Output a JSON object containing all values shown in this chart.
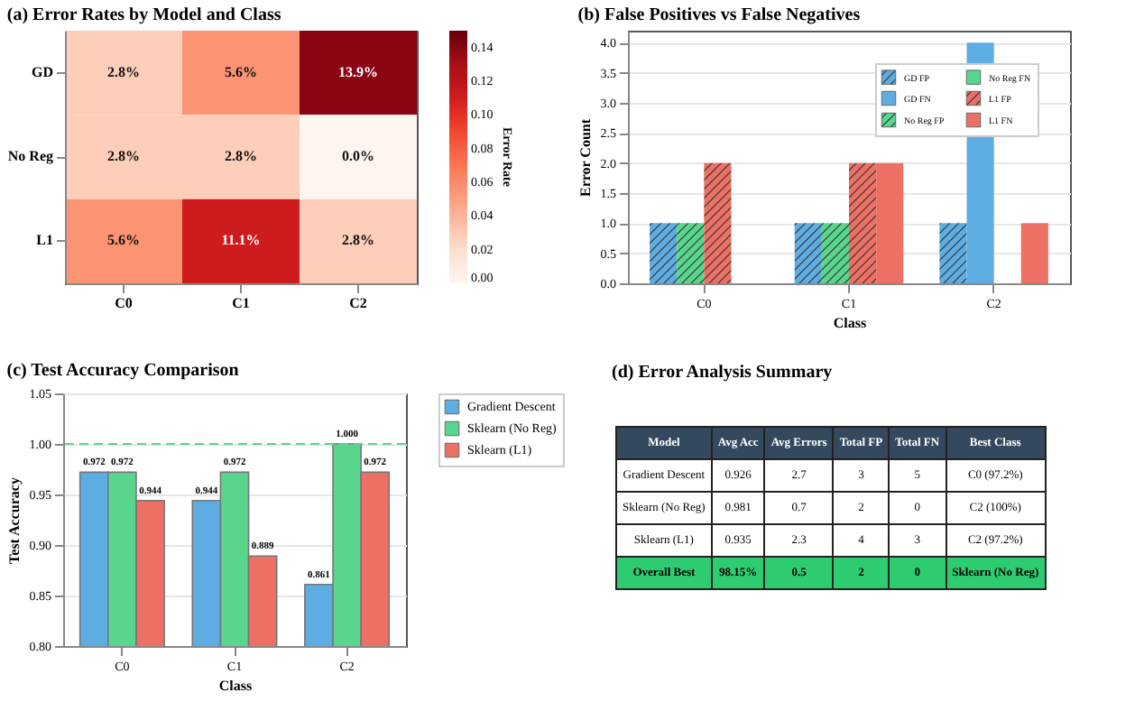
{
  "chart_data": [
    {
      "type": "heatmap",
      "title": "(a) Error Rates by Model and Class",
      "clabel": "Error Rate",
      "categories": [
        "C0",
        "C1",
        "C2"
      ],
      "y_categories": [
        "GD",
        "No Reg",
        "L1"
      ],
      "cells": [
        [
          0.028,
          0.056,
          0.139
        ],
        [
          0.028,
          0.028,
          0.0
        ],
        [
          0.056,
          0.111,
          0.028
        ]
      ],
      "cell_labels": [
        [
          "2.8%",
          "5.6%",
          "13.9%"
        ],
        [
          "2.8%",
          "2.8%",
          "0.0%"
        ],
        [
          "5.6%",
          "11.1%",
          "2.8%"
        ]
      ],
      "clim": [
        0,
        0.15
      ],
      "cticks": [
        {
          "value": 0,
          "label": "0.00"
        },
        {
          "value": 0.02,
          "label": "0.02"
        },
        {
          "value": 0.04,
          "label": "0.04"
        },
        {
          "value": 0.06,
          "label": "0.06"
        },
        {
          "value": 0.08,
          "label": "0.08"
        },
        {
          "value": 0.1,
          "label": "0.10"
        },
        {
          "value": 0.12,
          "label": "0.12"
        },
        {
          "value": 0.14,
          "label": "0.14"
        }
      ]
    },
    {
      "type": "bar",
      "title": "(b) False Positives vs False Negatives",
      "xlabel": "Class",
      "ylabel": "Error Count",
      "categories": [
        "C0",
        "C1",
        "C2"
      ],
      "series": [
        {
          "name": "GD FP",
          "color": "#5dade2",
          "values": [
            1,
            1,
            1
          ]
        },
        {
          "name": "GD FN",
          "color": "#5dade2",
          "values": [
            null,
            null,
            4
          ]
        },
        {
          "name": "No Reg FP",
          "color": "#58d68d",
          "values": [
            1,
            1,
            0
          ]
        },
        {
          "name": "No Reg FN",
          "color": "#58d68d",
          "values": [
            null,
            null,
            0
          ]
        },
        {
          "name": "L1 FP",
          "color": "#ec7063",
          "values": [
            2,
            2,
            0
          ]
        },
        {
          "name": "L1 FN",
          "color": "#ec7063",
          "values": [
            0,
            2,
            1
          ]
        }
      ],
      "ylim": [
        0,
        4.2
      ],
      "yticks": [
        {
          "value": 0,
          "label": "0.0"
        },
        {
          "value": 0.5,
          "label": "0.5"
        },
        {
          "value": 1,
          "label": "1.0"
        },
        {
          "value": 1.5,
          "label": "1.5"
        },
        {
          "value": 2,
          "label": "2.0"
        },
        {
          "value": 2.5,
          "label": "2.5"
        },
        {
          "value": 3,
          "label": "3.0"
        },
        {
          "value": 3.5,
          "label": "3.5"
        },
        {
          "value": 4,
          "label": "4.0"
        }
      ],
      "grid": "y",
      "legend": "top right"
    },
    {
      "type": "bar",
      "title": "(c) Test Accuracy Comparison",
      "xlabel": "Class",
      "ylabel": "Test Accuracy",
      "categories": [
        "C0",
        "C1",
        "C2"
      ],
      "series": [
        {
          "name": "Gradient Descent",
          "color": "#5dade2",
          "values": [
            0.972,
            0.944,
            0.861
          ],
          "value_labels": [
            "0.972",
            "0.944",
            "0.861"
          ]
        },
        {
          "name": "Sklearn (No Reg)",
          "color": "#58d68d",
          "values": [
            0.972,
            0.972,
            1.0
          ],
          "value_labels": [
            "0.972",
            "0.972",
            "1.000"
          ]
        },
        {
          "name": "Sklearn (L1)",
          "color": "#ec7063",
          "values": [
            0.944,
            0.889,
            0.972
          ],
          "value_labels": [
            "0.944",
            "0.889",
            "0.972"
          ]
        }
      ],
      "ylim": [
        0.8,
        1.05
      ],
      "yticks": [
        {
          "value": 0.8,
          "label": "0.80"
        },
        {
          "value": 0.85,
          "label": "0.85"
        },
        {
          "value": 0.9,
          "label": "0.90"
        },
        {
          "value": 0.95,
          "label": "0.95"
        },
        {
          "value": 1,
          "label": "1.00"
        },
        {
          "value": 1.05,
          "label": "1.05"
        }
      ],
      "ref_lines": [
        {
          "axis": "y",
          "value": 1.0,
          "color": "#58d68d",
          "line_style": "dashed"
        }
      ],
      "grid": "y",
      "legend": "right"
    },
    {
      "type": "other",
      "title": "(d) Error Analysis Summary",
      "categories": [
        "Model",
        "Avg Acc",
        "Avg Errors",
        "Total FP",
        "Total FN",
        "Best Class"
      ],
      "annotations": [
        "Gradient Descent",
        "0.926",
        "2.7",
        "3",
        "5",
        "C0 (97.2%)",
        "Sklearn (No Reg)",
        "0.981",
        "0.7",
        "2",
        "0",
        "C2 (100%)",
        "Sklearn (L1)",
        "0.935",
        "2.3",
        "4",
        "3",
        "C2 (97.2%)",
        "Overall Best",
        "98.15%",
        "0.5",
        "2",
        "0",
        "Sklearn (No Reg)"
      ]
    }
  ]
}
